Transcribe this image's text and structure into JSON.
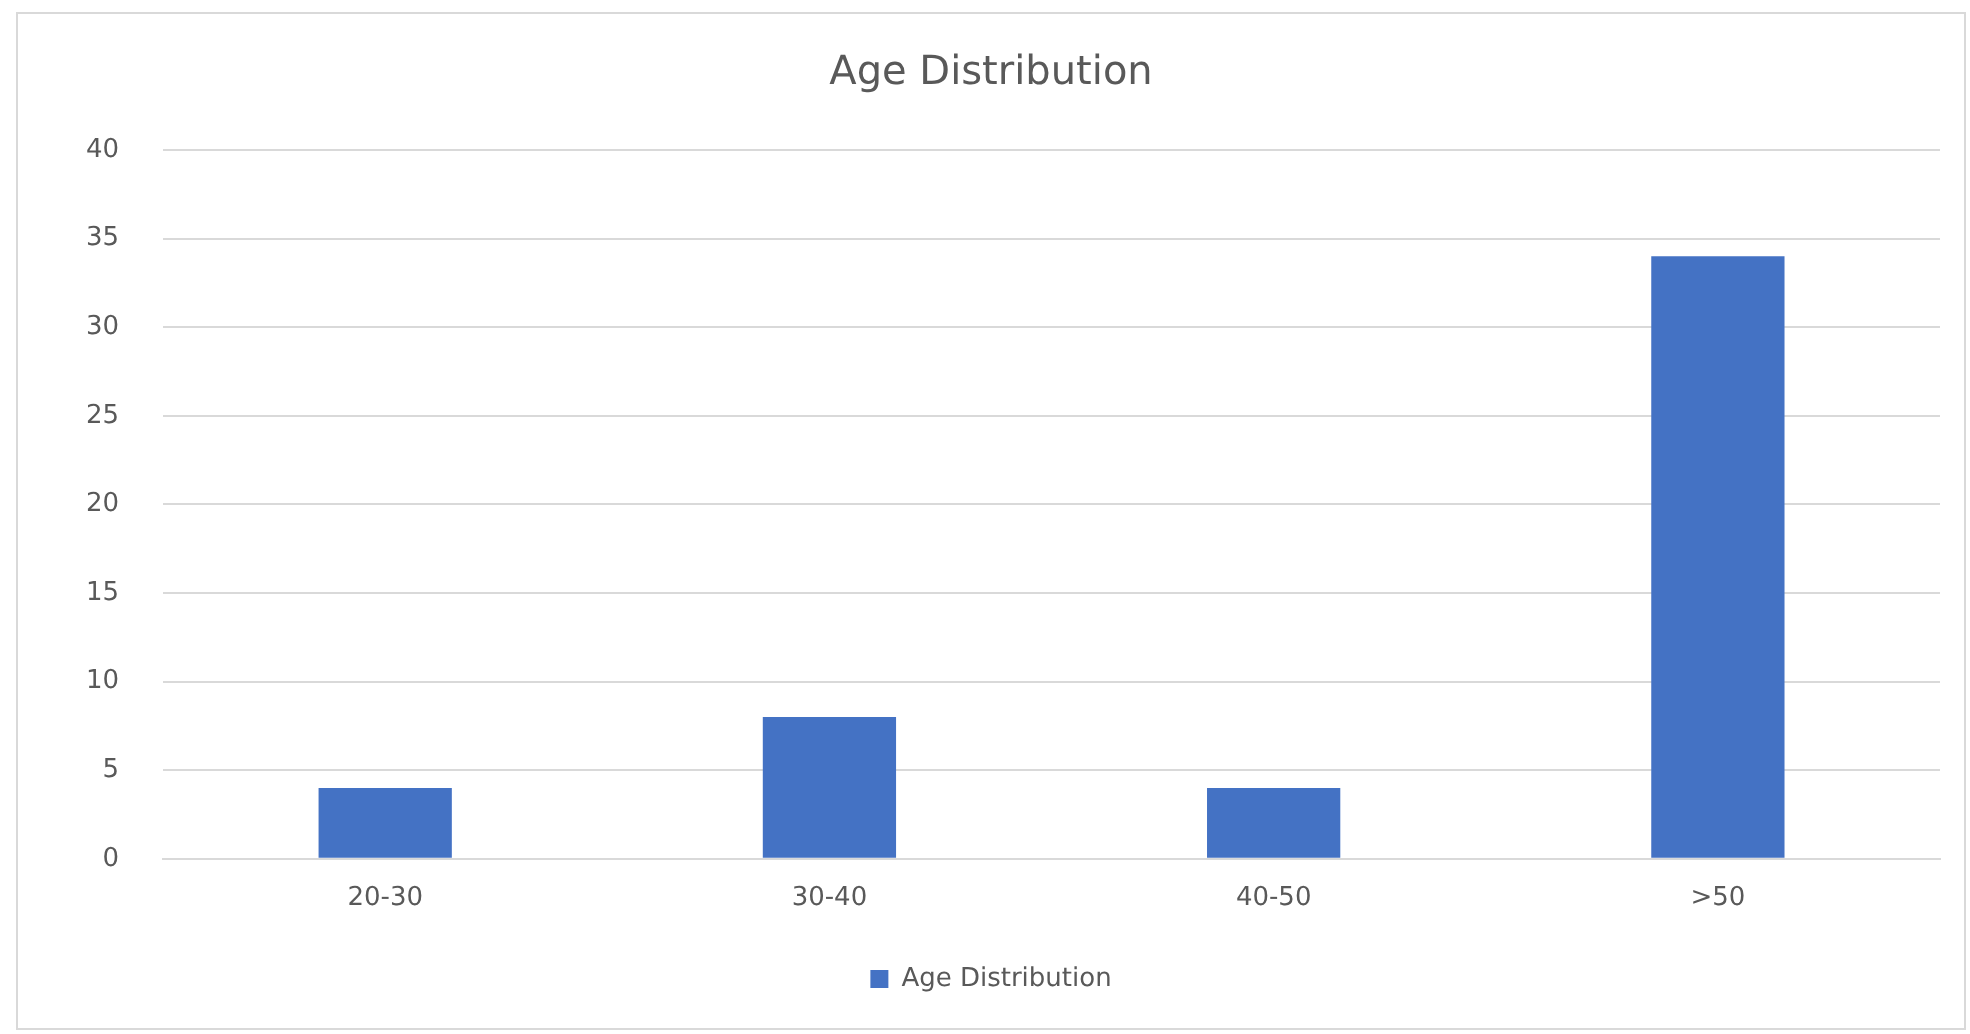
{
  "chart_data": {
    "type": "bar",
    "title": "Age Distribution",
    "categories": [
      "20-30",
      "30-40",
      "40-50",
      ">50"
    ],
    "series": [
      {
        "name": "Age Distribution",
        "color": "#4472c4",
        "values": [
          4,
          8,
          4,
          34
        ]
      }
    ],
    "ylim": [
      0,
      40
    ],
    "yticks": [
      0,
      5,
      10,
      15,
      20,
      25,
      30,
      35,
      40
    ],
    "grid": "y",
    "legend": "bottom"
  }
}
